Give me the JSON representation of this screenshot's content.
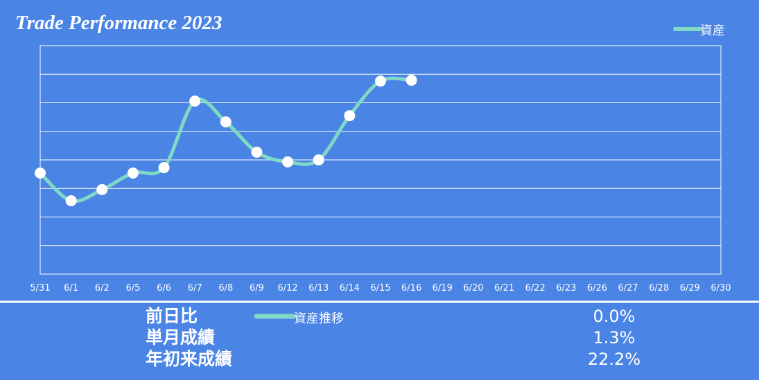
{
  "chart_data": {
    "type": "line",
    "title": "Trade Performance 2023",
    "categories": [
      "5/31",
      "6/1",
      "6/2",
      "6/5",
      "6/6",
      "6/7",
      "6/8",
      "6/9",
      "6/12",
      "6/13",
      "6/14",
      "6/15",
      "6/16",
      "6/19",
      "6/20",
      "6/21",
      "6/22",
      "6/23",
      "6/26",
      "6/27",
      "6/28",
      "6/29",
      "6/30"
    ],
    "series": [
      {
        "name": "資産",
        "color": "#7fd9c6",
        "values": [
          3.54,
          2.57,
          2.96,
          3.54,
          3.73,
          6.06,
          5.33,
          4.27,
          3.93,
          4.0,
          5.55,
          6.76,
          6.79,
          null,
          null,
          null,
          null,
          null,
          null,
          null,
          null,
          null,
          null
        ]
      }
    ],
    "ylim": [
      0,
      8
    ],
    "yticks": [
      0,
      1,
      2,
      3,
      4,
      5,
      6,
      7,
      8
    ],
    "ytick_labels": false,
    "grid": true,
    "legend": "upper right"
  },
  "summary": {
    "legend": "資産推移",
    "rows": [
      {
        "label": "前日比",
        "value": "0.0%"
      },
      {
        "label": "単月成績",
        "value": "1.3%"
      },
      {
        "label": "年初来成績",
        "value": "22.2%"
      }
    ]
  }
}
